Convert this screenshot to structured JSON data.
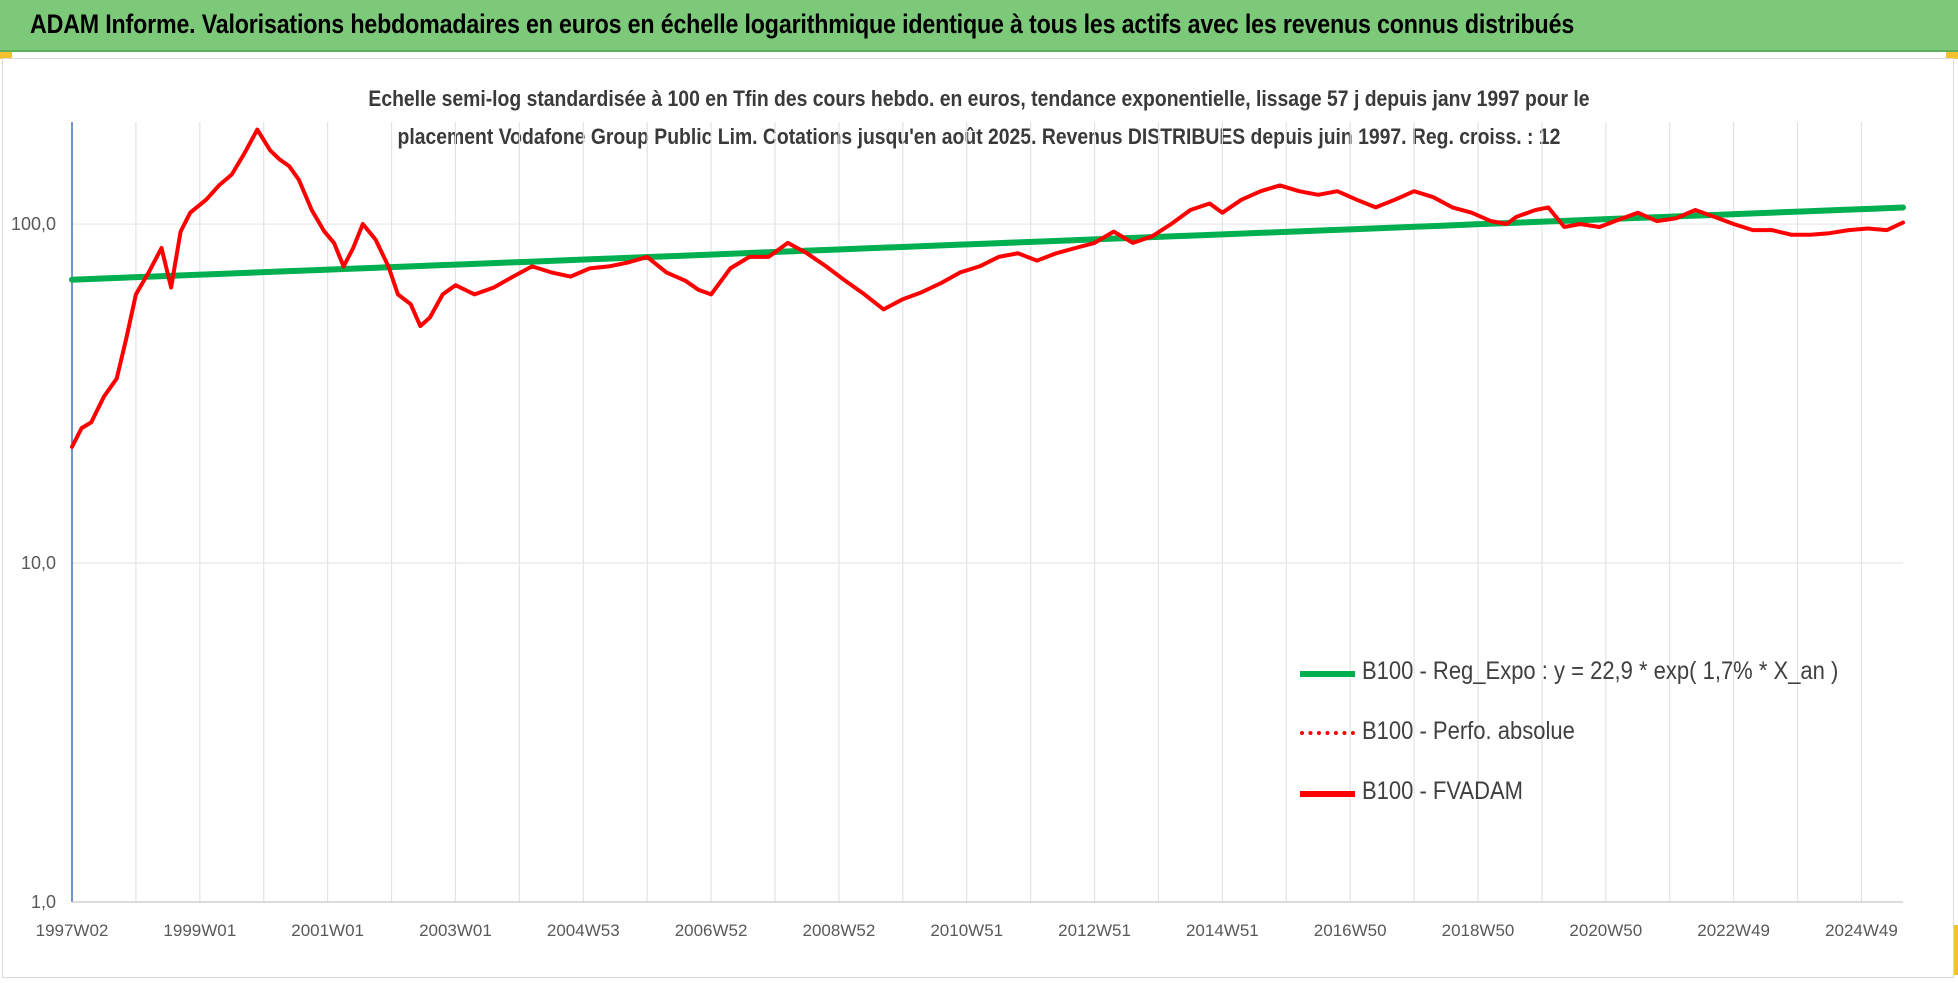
{
  "header": {
    "title": "ADAM Informe. Valorisations hebdomadaires en euros en échelle logarithmique identique à tous les actifs avec les revenus connus distribués"
  },
  "colors": {
    "header_bg": "#7dc97a",
    "series_regression": "#00b050",
    "series_perf": "#ff0000",
    "series_fvadam": "#ff0000",
    "corner_marks": "#f5c12e"
  },
  "chart_data": {
    "type": "line",
    "title": "",
    "subtitle": [
      "Echelle semi-log standardisée à 100 en Tfin des cours hebdo. en euros, tendance exponentielle, lissage 57 j depuis janv 1997 pour le",
      "placement Vodafone Group Public Lim. Cotations jusqu'en août 2025. Revenus DISTRIBUES depuis juin 1997. Reg. croiss. : 12"
    ],
    "y_scale": "log",
    "ylim": [
      1,
      200
    ],
    "yticks": [
      1,
      10,
      100
    ],
    "ytick_labels": [
      "1,0",
      "10,0",
      "100,0"
    ],
    "x_range": [
      1997.0,
      2025.65
    ],
    "xtick_labels": [
      "1997W02",
      "1999W01",
      "2001W01",
      "2003W01",
      "2004W53",
      "2006W52",
      "2008W52",
      "2010W51",
      "2012W51",
      "2014W51",
      "2016W50",
      "2018W50",
      "2020W50",
      "2022W49",
      "2024W49"
    ],
    "xtick_years": [
      1997.0,
      1999.0,
      2001.0,
      2003.0,
      2005.0,
      2007.0,
      2009.0,
      2011.0,
      2013.0,
      2015.0,
      2017.0,
      2019.0,
      2021.0,
      2023.0,
      2025.0
    ],
    "grid": "vertical",
    "legend_position": "right",
    "series": [
      {
        "name": "B100 - Reg_Expo : y = 22,9 * exp( 1,7% *  X_an )",
        "style": "solid",
        "color": "#00b050",
        "x": [
          1997.0,
          2025.65
        ],
        "y": [
          68.5,
          111.9
        ]
      },
      {
        "name": "B100 - Perfo. absolue",
        "style": "dotted",
        "color": "#ff0000",
        "x": [],
        "y": []
      },
      {
        "name": "B100 - FVADAM",
        "style": "solid",
        "color": "#ff0000",
        "x": [
          1997.0,
          1997.15,
          1997.3,
          1997.5,
          1997.7,
          1997.85,
          1998.0,
          1998.2,
          1998.4,
          1998.55,
          1998.7,
          1998.85,
          1998.95,
          1999.1,
          1999.3,
          1999.5,
          1999.7,
          1999.9,
          2000.1,
          2000.25,
          2000.4,
          2000.55,
          2000.75,
          2000.95,
          2001.1,
          2001.25,
          2001.4,
          2001.55,
          2001.75,
          2001.95,
          2002.1,
          2002.3,
          2002.45,
          2002.6,
          2002.8,
          2003.0,
          2003.3,
          2003.6,
          2003.9,
          2004.2,
          2004.5,
          2004.8,
          2005.1,
          2005.4,
          2005.7,
          2006.0,
          2006.3,
          2006.6,
          2006.8,
          2007.0,
          2007.3,
          2007.6,
          2007.9,
          2008.2,
          2008.5,
          2008.8,
          2009.1,
          2009.4,
          2009.7,
          2010.0,
          2010.3,
          2010.6,
          2010.9,
          2011.2,
          2011.5,
          2011.8,
          2012.1,
          2012.4,
          2012.7,
          2013.0,
          2013.3,
          2013.6,
          2013.9,
          2014.2,
          2014.5,
          2014.8,
          2015.0,
          2015.3,
          2015.6,
          2015.9,
          2016.2,
          2016.5,
          2016.8,
          2017.1,
          2017.4,
          2017.7,
          2018.0,
          2018.3,
          2018.6,
          2018.9,
          2019.2,
          2019.45,
          2019.6,
          2019.9,
          2020.1,
          2020.35,
          2020.6,
          2020.9,
          2021.2,
          2021.5,
          2021.8,
          2022.1,
          2022.4,
          2022.7,
          2023.0,
          2023.3,
          2023.6,
          2023.9,
          2024.2,
          2024.5,
          2024.8,
          2025.1,
          2025.4,
          2025.65
        ],
        "y": [
          22,
          25,
          26,
          31,
          35,
          46,
          62,
          72,
          85,
          65,
          95,
          108,
          112,
          118,
          130,
          140,
          162,
          190,
          165,
          155,
          148,
          135,
          110,
          95,
          88,
          75,
          85,
          100,
          90,
          75,
          62,
          58,
          50,
          53,
          62,
          66,
          62,
          65,
          70,
          75,
          72,
          70,
          74,
          75,
          77,
          80,
          72,
          68,
          64,
          62,
          74,
          80,
          80,
          88,
          82,
          75,
          68,
          62,
          56,
          60,
          63,
          67,
          72,
          75,
          80,
          82,
          78,
          82,
          85,
          88,
          95,
          88,
          92,
          100,
          110,
          115,
          108,
          118,
          125,
          130,
          125,
          122,
          125,
          118,
          112,
          118,
          125,
          120,
          112,
          108,
          102,
          100,
          105,
          110,
          112,
          98,
          100,
          98,
          103,
          108,
          102,
          104,
          110,
          105,
          100,
          96,
          96,
          93,
          93,
          94,
          96,
          97,
          96,
          101
        ]
      }
    ]
  }
}
